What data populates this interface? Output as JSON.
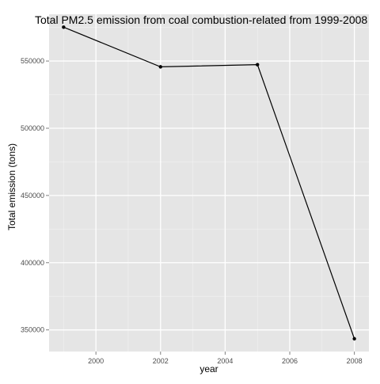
{
  "chart_data": {
    "type": "line",
    "title": "Total PM2.5 emission  from coal combustion-related from 1999-2008",
    "xlabel": "year",
    "ylabel": "Total emission (tons)",
    "x": [
      1999,
      2002,
      2005,
      2008
    ],
    "series": [
      {
        "values": [
          575200,
          545700,
          547300,
          343400
        ]
      }
    ],
    "xlim": [
      1998.55,
      2008.45
    ],
    "ylim": [
      333900,
      584800
    ],
    "xticks": [
      2000,
      2002,
      2004,
      2006,
      2008
    ],
    "xtick_labels": [
      "2000",
      "2002",
      "2004",
      "2006",
      "2008"
    ],
    "yticks": [
      350000,
      400000,
      450000,
      500000,
      550000
    ],
    "ytick_labels": [
      "350000",
      "400000",
      "450000",
      "500000",
      "550000"
    ],
    "grid": true,
    "legend": "none",
    "colors": {
      "panel_background": "#e5e5e5",
      "grid_major": "#ffffff",
      "grid_minor": "#f2f2f2",
      "line": "#000000",
      "point": "#000000",
      "tick_label": "#4d4d4d"
    }
  }
}
